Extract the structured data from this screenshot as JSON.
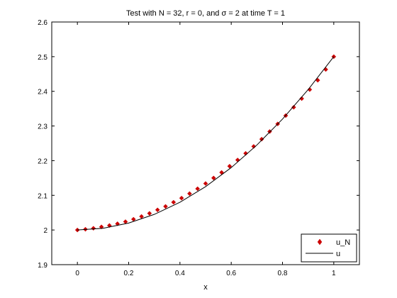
{
  "chart_data": {
    "type": "scatter",
    "title": "Test with N = 32, r = 0, and σ = 2 at time T = 1",
    "xlabel": "x",
    "ylabel": "",
    "xlim": [
      -0.1,
      1.1
    ],
    "ylim": [
      1.9,
      2.6
    ],
    "xticks": [
      0,
      0.2,
      0.4,
      0.6,
      0.8,
      1
    ],
    "xtick_labels": [
      "0",
      "0.2",
      "0.4",
      "0.6",
      "0.8",
      "1"
    ],
    "yticks": [
      1.9,
      2,
      2.1,
      2.2,
      2.3,
      2.4,
      2.5,
      2.6
    ],
    "ytick_labels": [
      "1.9",
      "2",
      "2.1",
      "2.2",
      "2.3",
      "2.4",
      "2.5",
      "2.6"
    ],
    "grid": false,
    "legend_position": "bottom-right",
    "series": [
      {
        "name": "u_N",
        "style": "markers",
        "color": "#cc0000",
        "x": [
          0,
          0.03125,
          0.0625,
          0.09375,
          0.125,
          0.15625,
          0.1875,
          0.21875,
          0.25,
          0.28125,
          0.3125,
          0.34375,
          0.375,
          0.40625,
          0.4375,
          0.46875,
          0.5,
          0.53125,
          0.5625,
          0.59375,
          0.625,
          0.65625,
          0.6875,
          0.71875,
          0.75,
          0.78125,
          0.8125,
          0.84375,
          0.875,
          0.90625,
          0.9375,
          0.96875,
          1
        ],
        "y": [
          2.0,
          2.002,
          2.005,
          2.009,
          2.013,
          2.018,
          2.024,
          2.031,
          2.039,
          2.048,
          2.058,
          2.068,
          2.08,
          2.092,
          2.105,
          2.119,
          2.134,
          2.15,
          2.166,
          2.184,
          2.202,
          2.221,
          2.241,
          2.262,
          2.284,
          2.306,
          2.33,
          2.354,
          2.379,
          2.405,
          2.432,
          2.463,
          2.5
        ]
      },
      {
        "name": "u",
        "style": "line",
        "color": "#000000",
        "x": [
          0,
          0.1,
          0.2,
          0.3,
          0.4,
          0.5,
          0.6,
          0.7,
          0.8,
          0.9,
          1
        ],
        "y": [
          2.0,
          2.005,
          2.02,
          2.045,
          2.08,
          2.125,
          2.18,
          2.245,
          2.32,
          2.405,
          2.5
        ]
      }
    ]
  }
}
